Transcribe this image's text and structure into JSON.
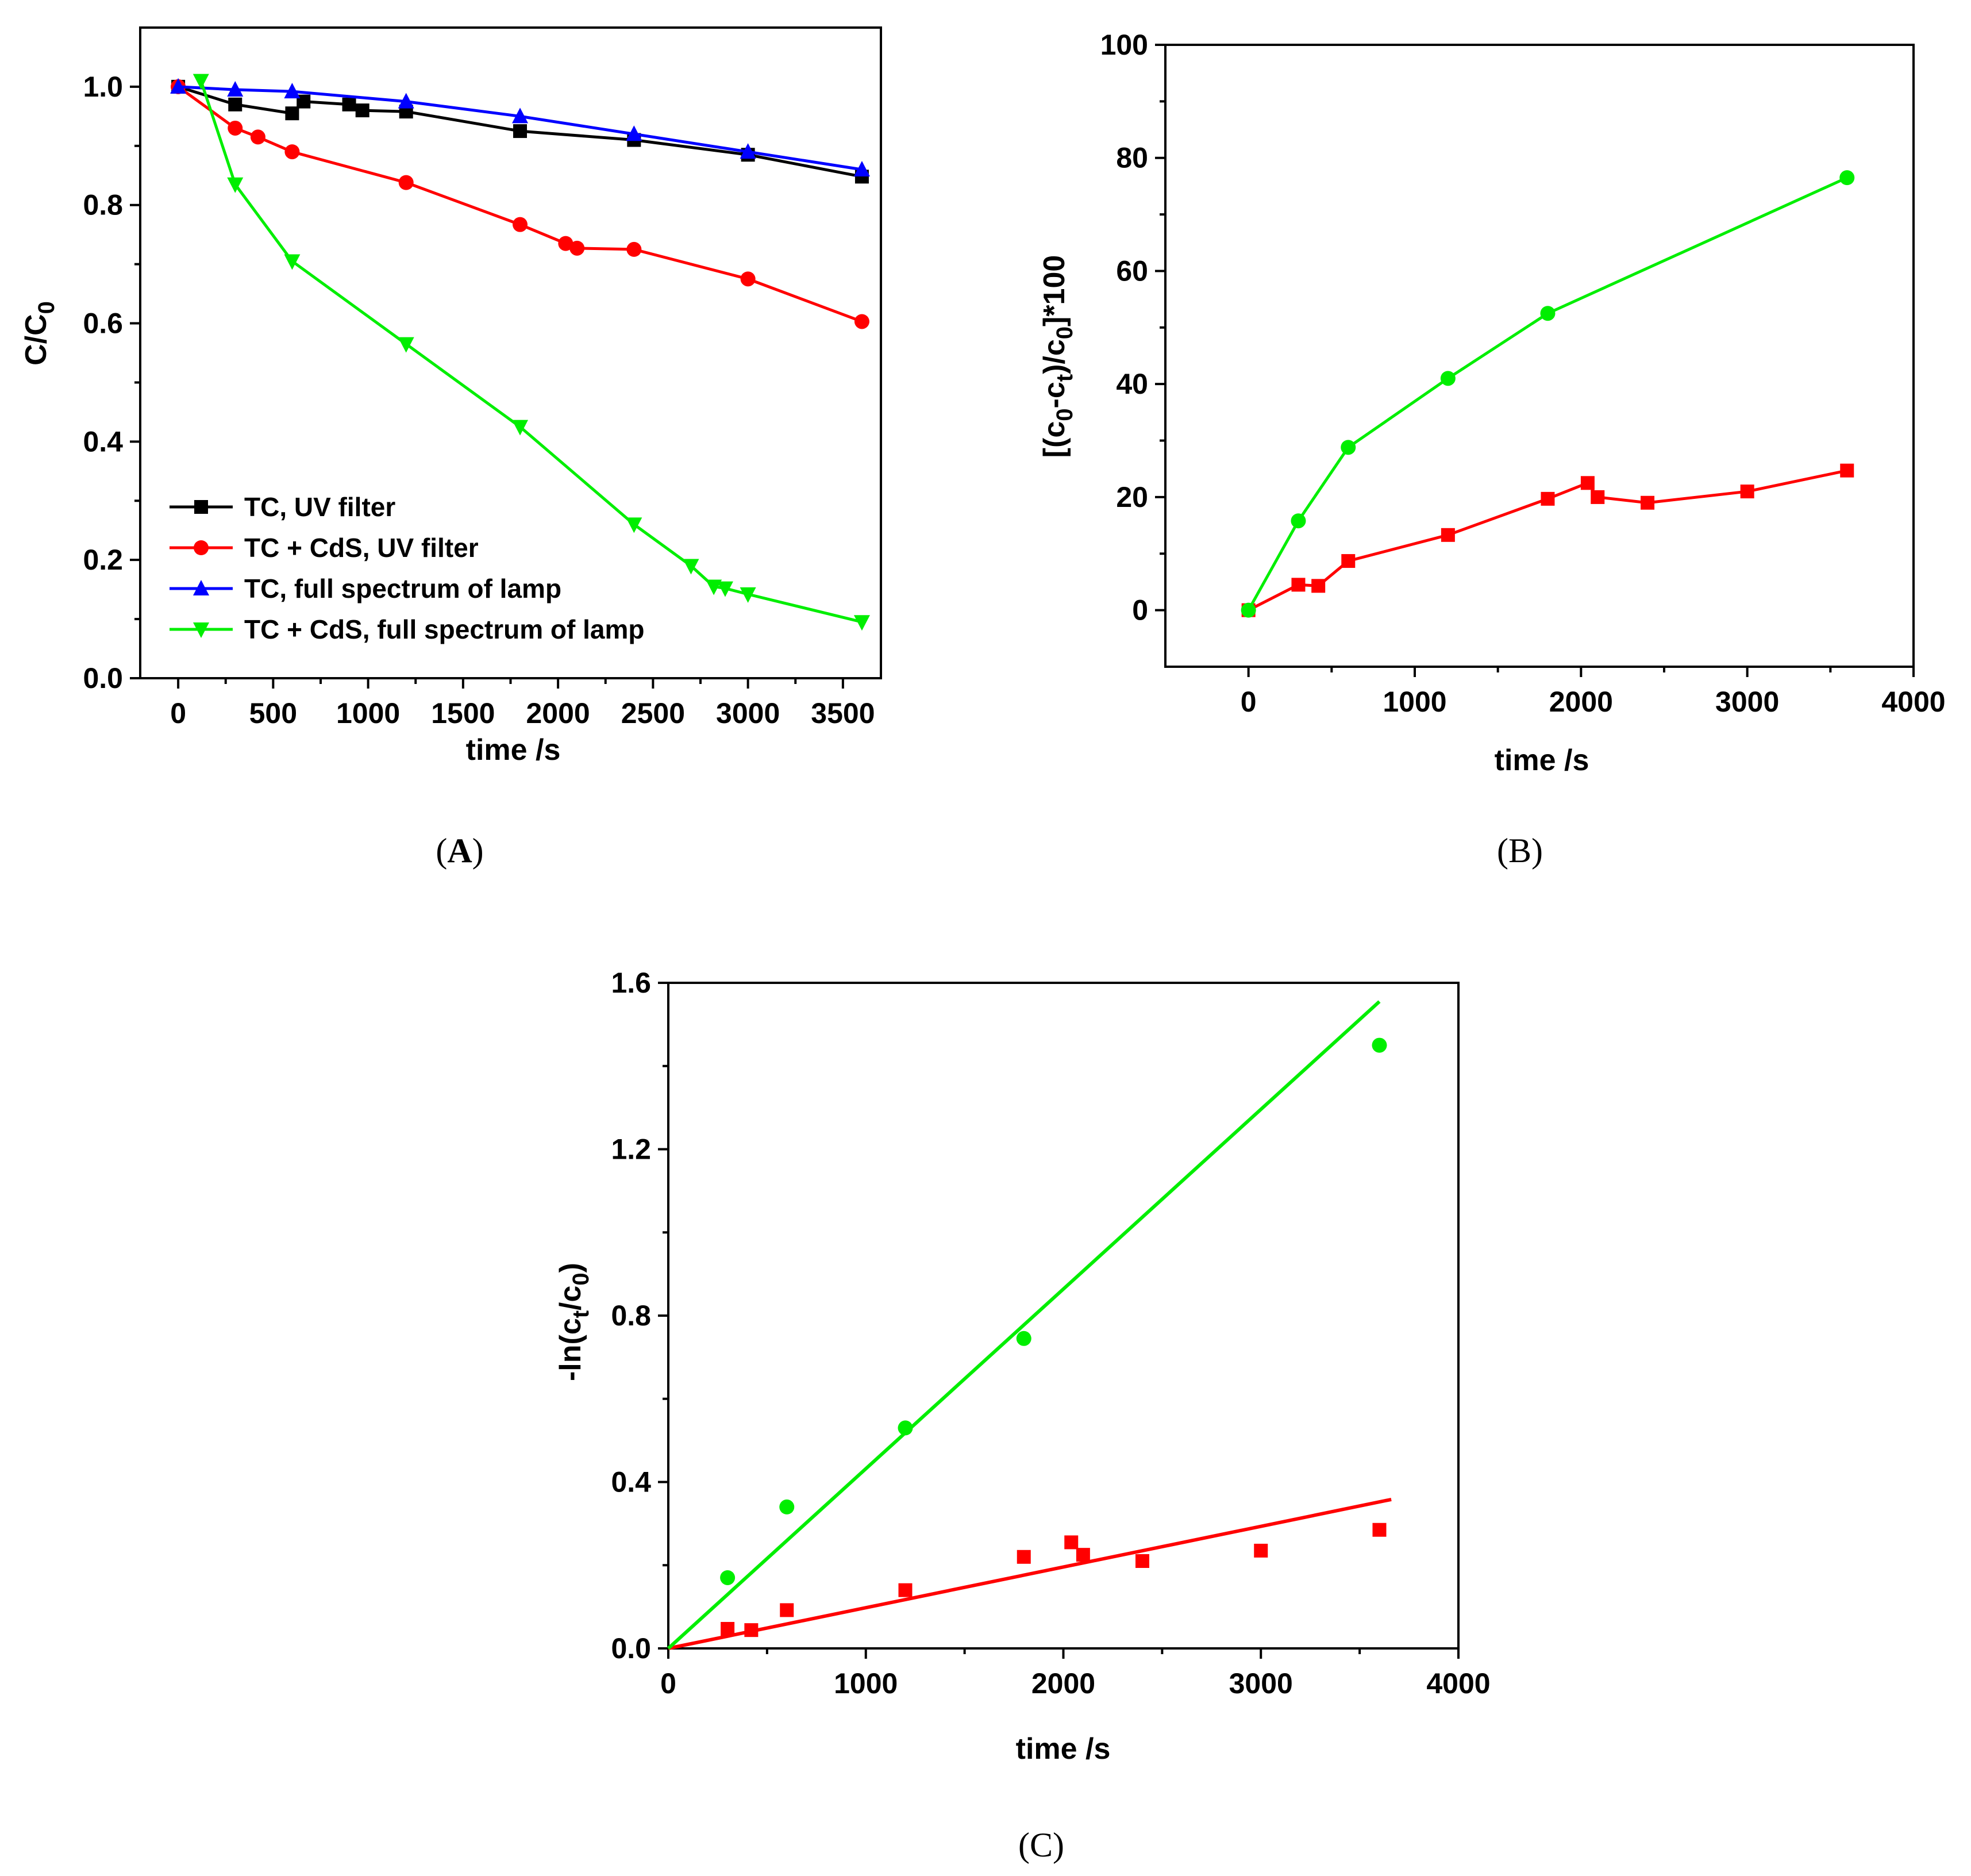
{
  "chart_data": [
    {
      "panel": "A",
      "type": "line",
      "panel_label_open": "(",
      "panel_label_letter": "A",
      "panel_label_close": ")",
      "xlabel": "time  /s",
      "ylabel_main": "C/C",
      "ylabel_sub": "0",
      "xlim": [
        -200,
        3700
      ],
      "ylim": [
        0,
        1.1
      ],
      "xticks": [
        0,
        500,
        1000,
        1500,
        2000,
        2500,
        3000,
        3500
      ],
      "yticks": [
        0.0,
        0.2,
        0.4,
        0.6,
        0.8,
        1.0
      ],
      "ytick_labels": [
        "0.0",
        "0.2",
        "0.4",
        "0.6",
        "0.8",
        "1.0"
      ],
      "legend_position": "bottom-left",
      "series": [
        {
          "name": "TC, UV filter",
          "color": "#000000",
          "marker": "square",
          "x": [
            0,
            300,
            600,
            660,
            900,
            970,
            1200,
            1800,
            2400,
            3000,
            3600
          ],
          "y": [
            1.0,
            0.97,
            0.955,
            0.975,
            0.97,
            0.96,
            0.958,
            0.925,
            0.91,
            0.885,
            0.848
          ]
        },
        {
          "name": "TC + CdS, UV filter",
          "color": "#ff0000",
          "marker": "circle",
          "x": [
            0,
            300,
            420,
            600,
            1200,
            1800,
            2040,
            2100,
            2400,
            3000,
            3600
          ],
          "y": [
            1.0,
            0.93,
            0.915,
            0.89,
            0.838,
            0.767,
            0.735,
            0.727,
            0.725,
            0.675,
            0.603
          ]
        },
        {
          "name": "TC, full spectrum of lamp",
          "color": "#0000ff",
          "marker": "triangle-up",
          "x": [
            0,
            300,
            600,
            1200,
            1800,
            2400,
            3000,
            3600
          ],
          "y": [
            1.0,
            0.995,
            0.992,
            0.975,
            0.95,
            0.92,
            0.89,
            0.86
          ]
        },
        {
          "name": "TC + CdS, full spectrum of lamp",
          "color": "#00ee00",
          "marker": "triangle-down",
          "x": [
            120,
            300,
            600,
            1200,
            1800,
            2400,
            2700,
            2820,
            2880,
            3000,
            3600
          ],
          "y": [
            1.01,
            0.835,
            0.705,
            0.565,
            0.425,
            0.26,
            0.19,
            0.155,
            0.152,
            0.142,
            0.095
          ]
        }
      ]
    },
    {
      "panel": "B",
      "type": "line",
      "panel_label": "(B)",
      "xlabel": "time  /s",
      "ylabel_parts": [
        "[(c",
        "0",
        "-c",
        "t",
        ")/c",
        "0",
        "]*100"
      ],
      "xlim": [
        -500,
        4000
      ],
      "ylim": [
        -10,
        100
      ],
      "xticks": [
        0,
        1000,
        2000,
        3000,
        4000
      ],
      "yticks": [
        0,
        20,
        40,
        60,
        80,
        100
      ],
      "series": [
        {
          "name": "TC + CdS, UV filter",
          "color": "#ff0000",
          "marker": "square",
          "x": [
            0,
            300,
            420,
            600,
            1200,
            1800,
            2040,
            2100,
            2400,
            3000,
            3600
          ],
          "y": [
            0,
            4.5,
            4.3,
            8.7,
            13.3,
            19.7,
            22.5,
            20.0,
            19.0,
            21.0,
            24.7
          ]
        },
        {
          "name": "TC + CdS, full spectrum of lamp",
          "color": "#00ee00",
          "marker": "circle",
          "x": [
            0,
            300,
            600,
            1200,
            1800,
            3600
          ],
          "y": [
            0,
            15.8,
            28.8,
            41.0,
            52.5,
            76.5
          ]
        }
      ]
    },
    {
      "panel": "C",
      "type": "scatter",
      "panel_label": "(C)",
      "xlabel": "time  /s",
      "ylabel_parts": [
        "-ln(c",
        "t",
        "/c",
        "0",
        ")"
      ],
      "xlim": [
        0,
        4000
      ],
      "ylim": [
        0,
        1.6
      ],
      "xticks": [
        0,
        1000,
        2000,
        3000,
        4000
      ],
      "yticks": [
        0.0,
        0.4,
        0.8,
        1.2,
        1.6
      ],
      "ytick_labels": [
        "0.0",
        "0.4",
        "0.8",
        "1.2",
        "1.6"
      ],
      "series": [
        {
          "name": "TC + CdS, UV filter",
          "color": "#ff0000",
          "marker": "square",
          "x": [
            300,
            420,
            600,
            1200,
            1800,
            2040,
            2100,
            2400,
            3000,
            3600
          ],
          "y": [
            0.047,
            0.044,
            0.092,
            0.14,
            0.22,
            0.255,
            0.225,
            0.21,
            0.235,
            0.285
          ],
          "fit": {
            "x": [
              0,
              3660
            ],
            "y": [
              0,
              0.358
            ]
          }
        },
        {
          "name": "TC + CdS, full spectrum of lamp",
          "color": "#00ee00",
          "marker": "circle",
          "x": [
            300,
            600,
            1200,
            1800,
            3600
          ],
          "y": [
            0.17,
            0.34,
            0.53,
            0.745,
            1.45
          ],
          "fit": {
            "x": [
              0,
              3600
            ],
            "y": [
              0,
              1.555
            ]
          }
        }
      ]
    }
  ]
}
